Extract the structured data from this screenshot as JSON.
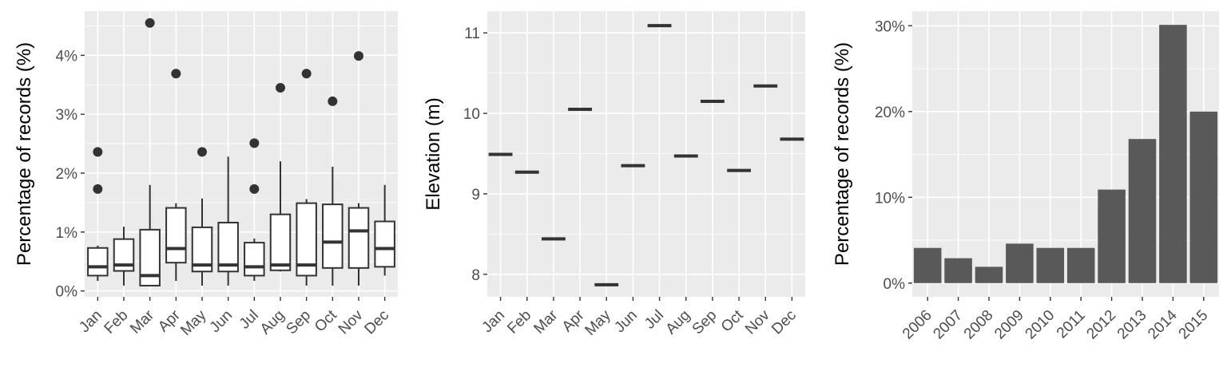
{
  "chart_data": [
    {
      "type": "box",
      "ylabel": "Percentage of records (%)",
      "ylim": [
        -0.1,
        4.75
      ],
      "yticks": [
        0,
        1,
        2,
        3,
        4
      ],
      "ytick_labels": [
        "0%",
        "1%",
        "2%",
        "3%",
        "4%"
      ],
      "categories": [
        "Jan",
        "Feb",
        "Mar",
        "Apr",
        "May",
        "Jun",
        "Jul",
        "Aug",
        "Sep",
        "Oct",
        "Nov",
        "Dec"
      ],
      "boxes": [
        {
          "min": 0.17,
          "q1": 0.26,
          "median": 0.41,
          "q3": 0.73,
          "max": 0.77,
          "outliers": [
            1.73,
            2.36
          ]
        },
        {
          "min": 0.09,
          "q1": 0.34,
          "median": 0.44,
          "q3": 0.88,
          "max": 1.09,
          "outliers": []
        },
        {
          "min": 0.09,
          "q1": 0.09,
          "median": 0.26,
          "q3": 1.04,
          "max": 1.8,
          "outliers": [
            4.55
          ]
        },
        {
          "min": 0.17,
          "q1": 0.48,
          "median": 0.72,
          "q3": 1.41,
          "max": 1.49,
          "outliers": [
            3.69
          ]
        },
        {
          "min": 0.09,
          "q1": 0.33,
          "median": 0.44,
          "q3": 1.08,
          "max": 1.57,
          "outliers": [
            2.36
          ]
        },
        {
          "min": 0.09,
          "q1": 0.33,
          "median": 0.44,
          "q3": 1.16,
          "max": 2.28,
          "outliers": []
        },
        {
          "min": 0.17,
          "q1": 0.26,
          "median": 0.41,
          "q3": 0.82,
          "max": 0.89,
          "outliers": [
            1.73,
            2.51
          ]
        },
        {
          "min": 0.33,
          "q1": 0.35,
          "median": 0.44,
          "q3": 1.3,
          "max": 2.2,
          "outliers": [
            3.45
          ]
        },
        {
          "min": 0.09,
          "q1": 0.26,
          "median": 0.44,
          "q3": 1.49,
          "max": 1.56,
          "outliers": [
            3.69
          ]
        },
        {
          "min": 0.09,
          "q1": 0.39,
          "median": 0.83,
          "q3": 1.47,
          "max": 2.11,
          "outliers": [
            3.22
          ]
        },
        {
          "min": 0.09,
          "q1": 0.39,
          "median": 1.02,
          "q3": 1.41,
          "max": 1.49,
          "outliers": [
            3.99
          ]
        },
        {
          "min": 0.26,
          "q1": 0.41,
          "median": 0.72,
          "q3": 1.18,
          "max": 1.8,
          "outliers": []
        }
      ]
    },
    {
      "type": "point",
      "ylabel": "Elevation (m)",
      "ylim": [
        7.72,
        11.27
      ],
      "yticks": [
        8,
        9,
        10,
        11
      ],
      "ytick_labels": [
        "8",
        "9",
        "10",
        "11"
      ],
      "categories": [
        "Jan",
        "Feb",
        "Mar",
        "Apr",
        "May",
        "Jun",
        "Jul",
        "Aug",
        "Sep",
        "Oct",
        "Nov",
        "Dec"
      ],
      "values": [
        9.49,
        9.27,
        8.44,
        10.05,
        7.87,
        9.35,
        11.09,
        9.47,
        10.15,
        9.29,
        10.34,
        9.68
      ]
    },
    {
      "type": "bar",
      "ylabel": "Percentage of records (%)",
      "ylim": [
        -1.6,
        31.7
      ],
      "yticks": [
        0,
        10,
        20,
        30
      ],
      "ytick_labels": [
        "0%",
        "10%",
        "20%",
        "30%"
      ],
      "categories": [
        "2006",
        "2007",
        "2008",
        "2009",
        "2010",
        "2011",
        "2012",
        "2013",
        "2014",
        "2015"
      ],
      "values": [
        4.1,
        2.9,
        1.9,
        4.6,
        4.1,
        4.1,
        10.9,
        16.8,
        30.1,
        20.0
      ]
    }
  ]
}
